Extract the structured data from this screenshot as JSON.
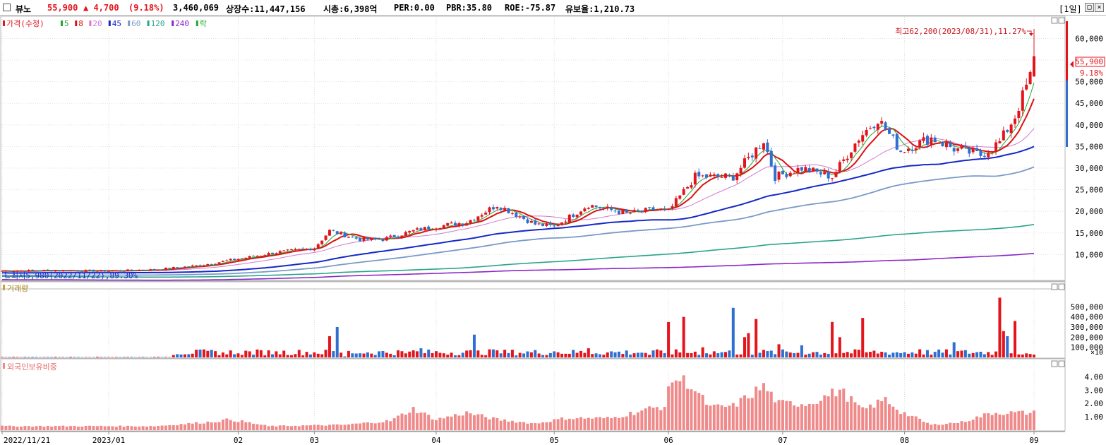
{
  "header": {
    "name": "뷰노",
    "price": "55,900",
    "change": "▲ 4,700",
    "change_pct": "(9.18%)",
    "volume": "3,460,069",
    "shares": "상장수:11,447,156",
    "mcap": "시총:6,398억",
    "per": "PER:0.00",
    "pbr": "PBR:35.80",
    "roe": "ROE:-75.87",
    "reserve": "유보율:1,210.73",
    "period": "[1일]"
  },
  "colors": {
    "up": "#e4141c",
    "down": "#2f6fd0",
    "ma5": "#22a833",
    "ma8": "#dd1111",
    "ma20": "#d07ad0",
    "ma45": "#1428c8",
    "ma60": "#7a9ac8",
    "ma120": "#2aa48a",
    "ma240": "#8a28c8",
    "foreign": "#f08a8a"
  },
  "chart_data": [
    {
      "type": "candlestick",
      "legend": [
        {
          "label": "가격(수정)",
          "color": "#e4141c"
        },
        {
          "label": "5",
          "color": "#22a833"
        },
        {
          "label": "8",
          "color": "#dd1111"
        },
        {
          "label": "20",
          "color": "#d07ad0"
        },
        {
          "label": "45",
          "color": "#1428c8"
        },
        {
          "label": "60",
          "color": "#7a9ac8"
        },
        {
          "label": "120",
          "color": "#2aa48a"
        },
        {
          "label": "240",
          "color": "#8a28c8"
        },
        {
          "label": "락",
          "color": "#22a833"
        }
      ],
      "y_ticks": [
        "10,000",
        "15,000",
        "20,000",
        "25,000",
        "30,000",
        "35,000",
        "40,000",
        "45,000",
        "50,000",
        "55,000",
        "60,000"
      ],
      "y_tick_values": [
        10000,
        15000,
        20000,
        25000,
        30000,
        35000,
        40000,
        45000,
        50000,
        55000,
        60000
      ],
      "ylim": [
        4500,
        64000
      ],
      "current_label": "55,900",
      "current_pct": "9.18%",
      "high_annotation": "최고62,200(2023/08/31),11.27%",
      "low_annotation": "최저5,980(2022/11/22),89.30%",
      "x_labels": [
        "2022/11/21",
        "2023/01",
        "02",
        "03",
        "04",
        "05",
        "06",
        "07",
        "08",
        "09"
      ],
      "x_label_days": [
        0,
        28,
        62,
        82,
        114,
        145,
        175,
        205,
        237,
        271
      ],
      "anchors": [
        [
          0,
          6200
        ],
        [
          12,
          6300
        ],
        [
          28,
          6200
        ],
        [
          40,
          6500
        ],
        [
          52,
          7500
        ],
        [
          62,
          9000
        ],
        [
          72,
          10500
        ],
        [
          82,
          11500
        ],
        [
          86,
          15500
        ],
        [
          94,
          13500
        ],
        [
          100,
          13500
        ],
        [
          108,
          15500
        ],
        [
          114,
          16500
        ],
        [
          122,
          17500
        ],
        [
          130,
          21500
        ],
        [
          140,
          17000
        ],
        [
          145,
          16500
        ],
        [
          154,
          21500
        ],
        [
          164,
          19500
        ],
        [
          172,
          20500
        ],
        [
          175,
          20000
        ],
        [
          182,
          28000
        ],
        [
          192,
          28000
        ],
        [
          200,
          36500
        ],
        [
          203,
          28000
        ],
        [
          210,
          30000
        ],
        [
          218,
          28000
        ],
        [
          225,
          37000
        ],
        [
          230,
          41500
        ],
        [
          236,
          34000
        ],
        [
          244,
          37000
        ],
        [
          250,
          34500
        ],
        [
          257,
          33000
        ],
        [
          262,
          36000
        ],
        [
          266,
          42000
        ],
        [
          270,
          51200
        ],
        [
          271,
          55900
        ]
      ],
      "last_candle": {
        "open": 51200,
        "high": 62200,
        "low": 51200,
        "close": 55900
      }
    },
    {
      "type": "bar",
      "title": "거래량",
      "y_ticks": [
        "100,000",
        "200,000",
        "300,000",
        "400,000",
        "500,000"
      ],
      "y_tick_values": [
        100000,
        200000,
        300000,
        400000,
        500000
      ],
      "ylim": [
        0,
        600000
      ],
      "unit": "×10",
      "spikes": [
        [
          59,
          30
        ],
        [
          62,
          40
        ],
        [
          72,
          60
        ],
        [
          86,
          210
        ],
        [
          88,
          300
        ],
        [
          90,
          10
        ],
        [
          92,
          40
        ],
        [
          106,
          40
        ],
        [
          108,
          70
        ],
        [
          110,
          90
        ],
        [
          124,
          225
        ],
        [
          128,
          80
        ],
        [
          130,
          70
        ],
        [
          145,
          60
        ],
        [
          154,
          90
        ],
        [
          170,
          25
        ],
        [
          175,
          350
        ],
        [
          179,
          400
        ],
        [
          184,
          100
        ],
        [
          192,
          490
        ],
        [
          195,
          200
        ],
        [
          196,
          240
        ],
        [
          198,
          380
        ],
        [
          204,
          130
        ],
        [
          210,
          120
        ],
        [
          218,
          350
        ],
        [
          220,
          200
        ],
        [
          226,
          390
        ],
        [
          241,
          80
        ],
        [
          250,
          150
        ],
        [
          262,
          590
        ],
        [
          263,
          260
        ],
        [
          264,
          210
        ],
        [
          266,
          360
        ]
      ]
    },
    {
      "type": "bar",
      "title": "외국인보유비중",
      "y_ticks": [
        "1.00",
        "2.00",
        "3.00",
        "4.00"
      ],
      "y_tick_values": [
        1,
        2,
        3,
        4
      ],
      "ylim": [
        0,
        4.6
      ],
      "anchors": [
        [
          0,
          0.3
        ],
        [
          40,
          0.3
        ],
        [
          54,
          0.6
        ],
        [
          60,
          0.8
        ],
        [
          70,
          0.3
        ],
        [
          90,
          0.4
        ],
        [
          102,
          0.7
        ],
        [
          108,
          1.6
        ],
        [
          114,
          0.8
        ],
        [
          122,
          1.3
        ],
        [
          130,
          0.8
        ],
        [
          140,
          0.5
        ],
        [
          148,
          0.9
        ],
        [
          160,
          0.9
        ],
        [
          170,
          1.6
        ],
        [
          174,
          1.8
        ],
        [
          176,
          3.9
        ],
        [
          180,
          3.6
        ],
        [
          186,
          1.7
        ],
        [
          192,
          1.8
        ],
        [
          200,
          3.3
        ],
        [
          204,
          2.0
        ],
        [
          212,
          2.0
        ],
        [
          220,
          3.0
        ],
        [
          226,
          1.5
        ],
        [
          232,
          2.3
        ],
        [
          236,
          1.4
        ],
        [
          244,
          0.4
        ],
        [
          252,
          0.6
        ],
        [
          260,
          1.3
        ],
        [
          266,
          1.3
        ]
      ]
    }
  ]
}
